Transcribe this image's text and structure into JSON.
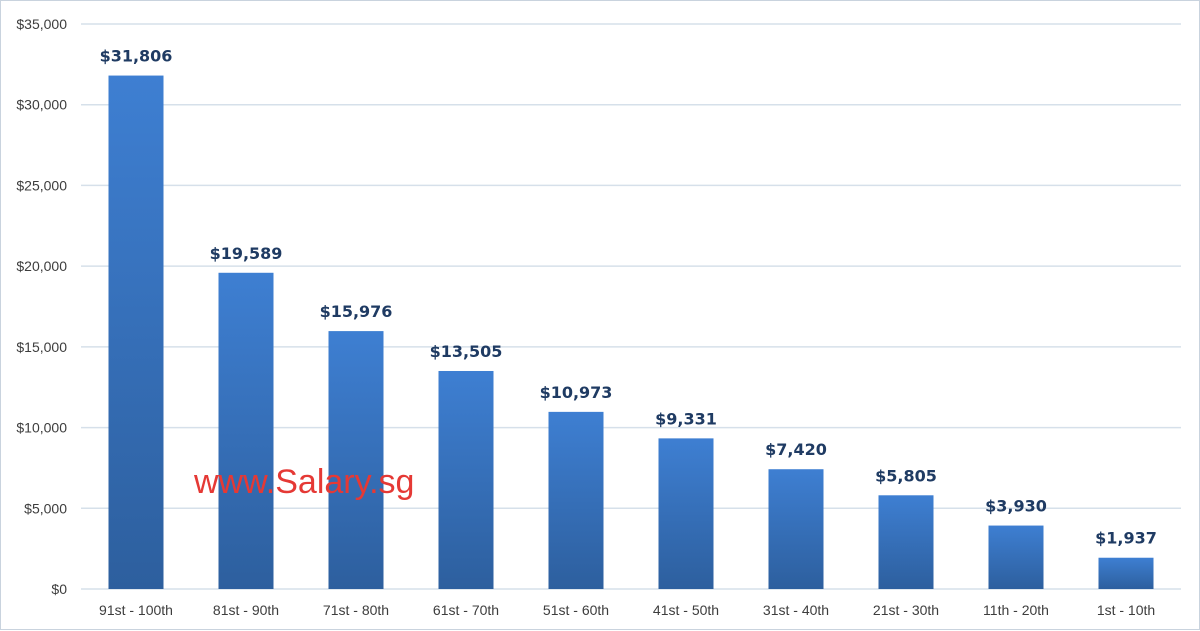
{
  "chart_data": {
    "type": "bar",
    "title": "",
    "xlabel": "",
    "ylabel": "",
    "categories": [
      "91st - 100th",
      "81st - 90th",
      "71st - 80th",
      "61st - 70th",
      "51st - 60th",
      "41st - 50th",
      "31st - 40th",
      "21st - 30th",
      "11th - 20th",
      "1st - 10th"
    ],
    "values": [
      31806,
      19589,
      15976,
      13505,
      10973,
      9331,
      7420,
      5805,
      3930,
      1937
    ],
    "data_labels": [
      "$31,806",
      "$19,589",
      "$15,976",
      "$13,505",
      "$10,973",
      "$9,331",
      "$7,420",
      "$5,805",
      "$3,930",
      "$1,937"
    ],
    "ylim": [
      0,
      35000
    ],
    "yticks": [
      0,
      5000,
      10000,
      15000,
      20000,
      25000,
      30000,
      35000
    ],
    "ytick_labels": [
      "$0",
      "$5,000",
      "$10,000",
      "$15,000",
      "$20,000",
      "$25,000",
      "$30,000",
      "$35,000"
    ],
    "grid": true,
    "legend": "none",
    "bar_color_top": "#3e7fd2",
    "bar_color_bottom": "#2d5f9e",
    "data_label_color": "#1f3b63",
    "gridline_color": "#d6e0ea"
  },
  "watermark": {
    "text": "www.Salary.sg",
    "color": "#e53935"
  }
}
